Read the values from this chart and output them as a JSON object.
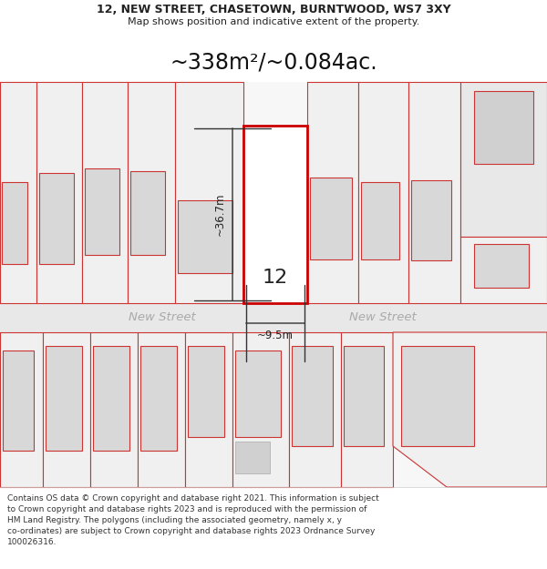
{
  "title_line1": "12, NEW STREET, CHASETOWN, BURNTWOOD, WS7 3XY",
  "title_line2": "Map shows position and indicative extent of the property.",
  "area_text": "~338m²/~0.084ac.",
  "property_number": "12",
  "dim_width": "~9.5m",
  "dim_height": "~36.7m",
  "street_name": "New Street",
  "bg_color": "#ffffff",
  "plot_line_color": "#cc3333",
  "footer_lines": [
    "Contains OS data © Crown copyright and database right 2021. This information is subject",
    "to Crown copyright and database rights 2023 and is reproduced with the permission of",
    "HM Land Registry. The polygons (including the associated geometry, namely x, y",
    "co-ordinates) are subject to Crown copyright and database rights 2023 Ordnance Survey",
    "100026316."
  ]
}
